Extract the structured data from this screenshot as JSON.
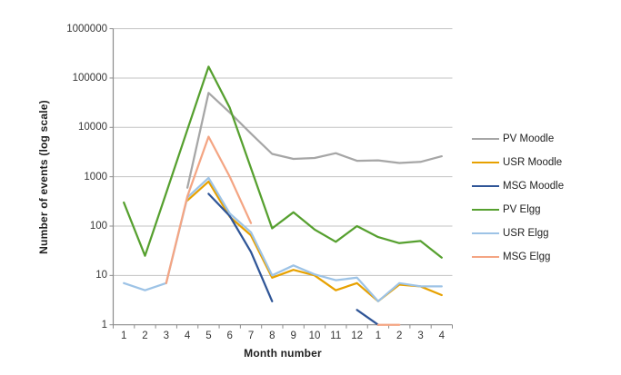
{
  "chart_data": {
    "type": "line",
    "title": "",
    "xlabel": "Month number",
    "ylabel": "Number of events (log scale)",
    "y_scale": "log10",
    "ylim": [
      1,
      1000000
    ],
    "y_ticks": [
      1,
      10,
      100,
      1000,
      10000,
      100000,
      1000000
    ],
    "y_tick_labels": [
      "1",
      "10",
      "100",
      "1000",
      "10000",
      "100000",
      "1000000"
    ],
    "categories": [
      "1",
      "2",
      "3",
      "4",
      "5",
      "6",
      "7",
      "8",
      "9",
      "10",
      "11",
      "12",
      "1",
      "2",
      "3",
      "4"
    ],
    "grid": "horizontal",
    "legend_position": "right",
    "series": [
      {
        "name": "PV Moodle",
        "color": "#A6A6A6",
        "values": [
          null,
          null,
          null,
          600,
          50000,
          20000,
          7500,
          2900,
          2300,
          2400,
          3000,
          2100,
          2150,
          1900,
          2000,
          2600
        ]
      },
      {
        "name": "USR Moodle",
        "color": "#E7A100",
        "values": [
          null,
          null,
          null,
          330,
          800,
          155,
          65,
          9,
          13,
          10,
          5,
          7,
          3,
          6.5,
          6,
          4
        ]
      },
      {
        "name": "MSG Moodle",
        "color": "#2F5597",
        "values": [
          null,
          null,
          null,
          null,
          450,
          160,
          30,
          3,
          null,
          null,
          null,
          2,
          1,
          null,
          null,
          null
        ]
      },
      {
        "name": "PV Elgg",
        "color": "#56A02F",
        "values": [
          300,
          25,
          470,
          9000,
          170000,
          25000,
          1500,
          90,
          190,
          85,
          48,
          100,
          60,
          45,
          50,
          23
        ]
      },
      {
        "name": "USR Elgg",
        "color": "#9DC3E6",
        "values": [
          7,
          5,
          7,
          380,
          950,
          180,
          75,
          10,
          16,
          10.5,
          8,
          9,
          3,
          7,
          6,
          6
        ]
      },
      {
        "name": "MSG Elgg",
        "color": "#F4A583",
        "values": [
          null,
          null,
          7,
          400,
          6500,
          1000,
          115,
          null,
          null,
          null,
          null,
          null,
          1,
          1,
          null,
          null
        ]
      }
    ],
    "colors": {
      "axis": "#8C8C8C",
      "gridline": "#C3C3C3",
      "text": "#363636"
    }
  }
}
